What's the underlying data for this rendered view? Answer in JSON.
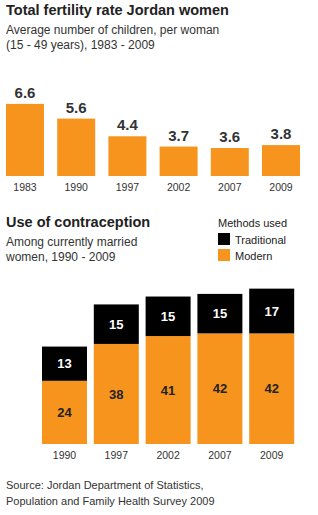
{
  "chart_data": [
    {
      "type": "bar",
      "title": "Total fertility rate Jordan women",
      "subtitle": [
        "Average number of children, per woman",
        "(15 - 49 years), 1983 - 2009"
      ],
      "categories": [
        "1983",
        "1990",
        "1997",
        "2002",
        "2007",
        "2009"
      ],
      "values": [
        6.6,
        5.6,
        4.4,
        3.7,
        3.6,
        3.8
      ],
      "color": "#f7941e",
      "ylim": [
        1.7,
        7.0
      ],
      "data_labels": true,
      "tick_labels": "x",
      "grid": false
    },
    {
      "type": "bar",
      "title": "Use of contraception",
      "subtitle": [
        "Among currently married",
        "women, 1990 - 2009"
      ],
      "categories": [
        "1990",
        "1997",
        "2002",
        "2007",
        "2009"
      ],
      "series": [
        {
          "name": "Modern",
          "color": "#f7941e",
          "values": [
            24,
            38,
            41,
            42,
            42
          ]
        },
        {
          "name": "Traditional",
          "color": "#000000",
          "values": [
            13,
            15,
            15,
            15,
            17
          ]
        }
      ],
      "stacked": true,
      "ylim": [
        0,
        60
      ],
      "data_labels": true,
      "tick_labels": "x",
      "grid": false,
      "legend": "upper right",
      "legend_title": "Methods used"
    }
  ],
  "source": [
    "Source: Jordan Department of Statistics,",
    "Population and Family Health Survey 2009"
  ]
}
